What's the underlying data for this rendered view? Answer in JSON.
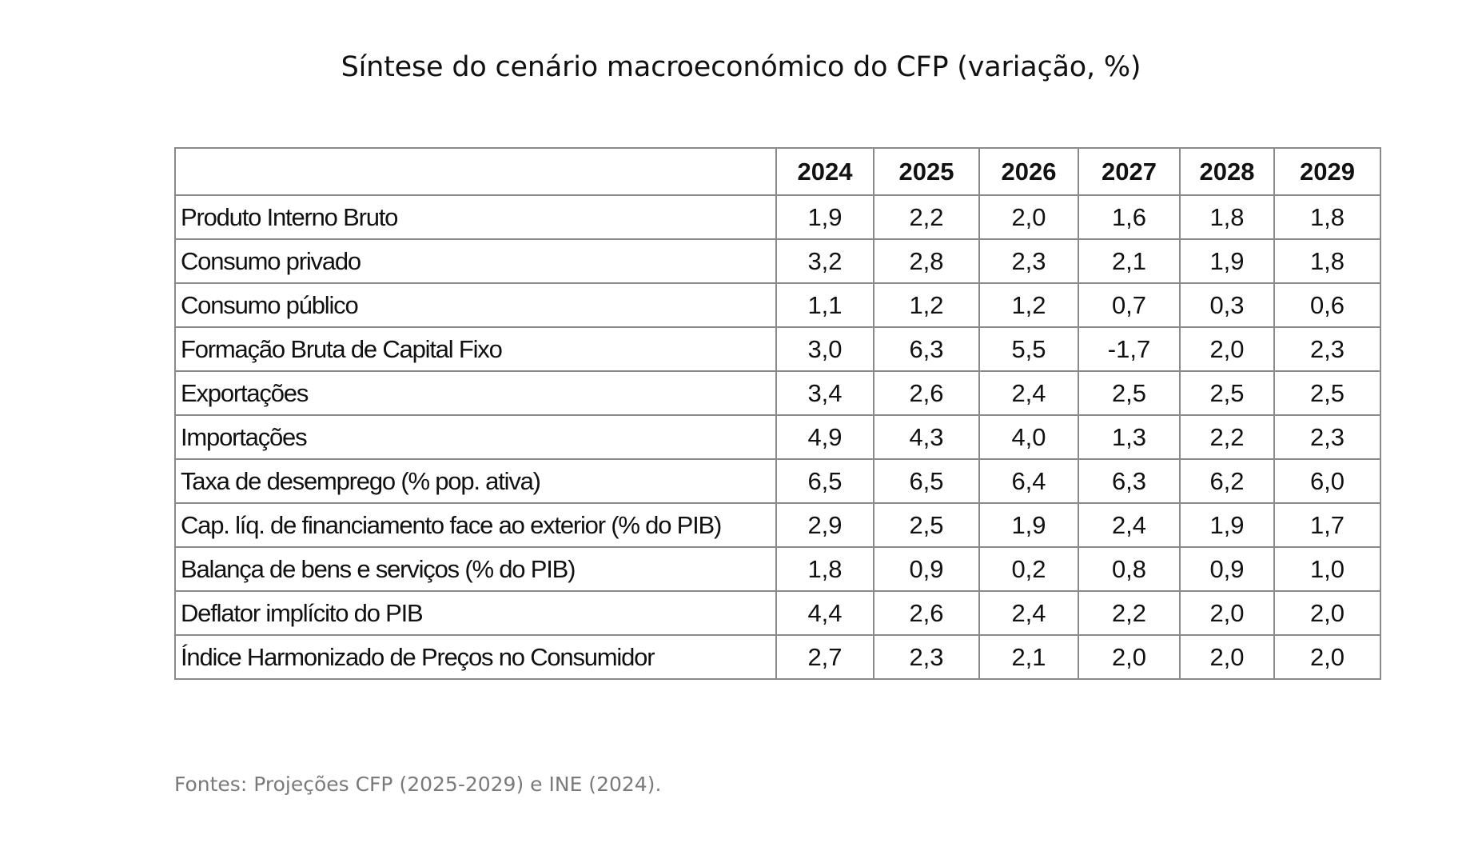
{
  "title": "Síntese do cenário macroeconómico do CFP (variação, %)",
  "table": {
    "columns": [
      "2024",
      "2025",
      "2026",
      "2027",
      "2028",
      "2029"
    ],
    "rows": [
      {
        "label": "Produto Interno Bruto",
        "values": [
          "1,9",
          "2,2",
          "2,0",
          "1,6",
          "1,8",
          "1,8"
        ]
      },
      {
        "label": "Consumo privado",
        "values": [
          "3,2",
          "2,8",
          "2,3",
          "2,1",
          "1,9",
          "1,8"
        ]
      },
      {
        "label": "Consumo público",
        "values": [
          "1,1",
          "1,2",
          "1,2",
          "0,7",
          "0,3",
          "0,6"
        ]
      },
      {
        "label": "Formação Bruta de Capital Fixo",
        "values": [
          "3,0",
          "6,3",
          "5,5",
          "-1,7",
          "2,0",
          "2,3"
        ]
      },
      {
        "label": "Exportações",
        "values": [
          "3,4",
          "2,6",
          "2,4",
          "2,5",
          "2,5",
          "2,5"
        ]
      },
      {
        "label": "Importações",
        "values": [
          "4,9",
          "4,3",
          "4,0",
          "1,3",
          "2,2",
          "2,3"
        ]
      },
      {
        "label": "Taxa de desemprego (% pop. ativa)",
        "values": [
          "6,5",
          "6,5",
          "6,4",
          "6,3",
          "6,2",
          "6,0"
        ]
      },
      {
        "label": "Cap. líq. de financiamento face ao exterior (% do PIB)",
        "values": [
          "2,9",
          "2,5",
          "1,9",
          "2,4",
          "1,9",
          "1,7"
        ]
      },
      {
        "label": "Balança de bens e serviços (% do PIB)",
        "values": [
          "1,8",
          "0,9",
          "0,2",
          "0,8",
          "0,9",
          "1,0"
        ]
      },
      {
        "label": "Deflator implícito do PIB",
        "values": [
          "4,4",
          "2,6",
          "2,4",
          "2,2",
          "2,0",
          "2,0"
        ]
      },
      {
        "label": "Índice Harmonizado de Preços no Consumidor",
        "values": [
          "2,7",
          "2,3",
          "2,1",
          "2,0",
          "2,0",
          "2,0"
        ]
      }
    ]
  },
  "source": "Fontes: Projeções CFP (2025-2029) e INE (2024).",
  "colors": {
    "text": "#111111",
    "border": "#8a8a8a",
    "source_text": "#7a7a7a",
    "background": "#ffffff"
  }
}
